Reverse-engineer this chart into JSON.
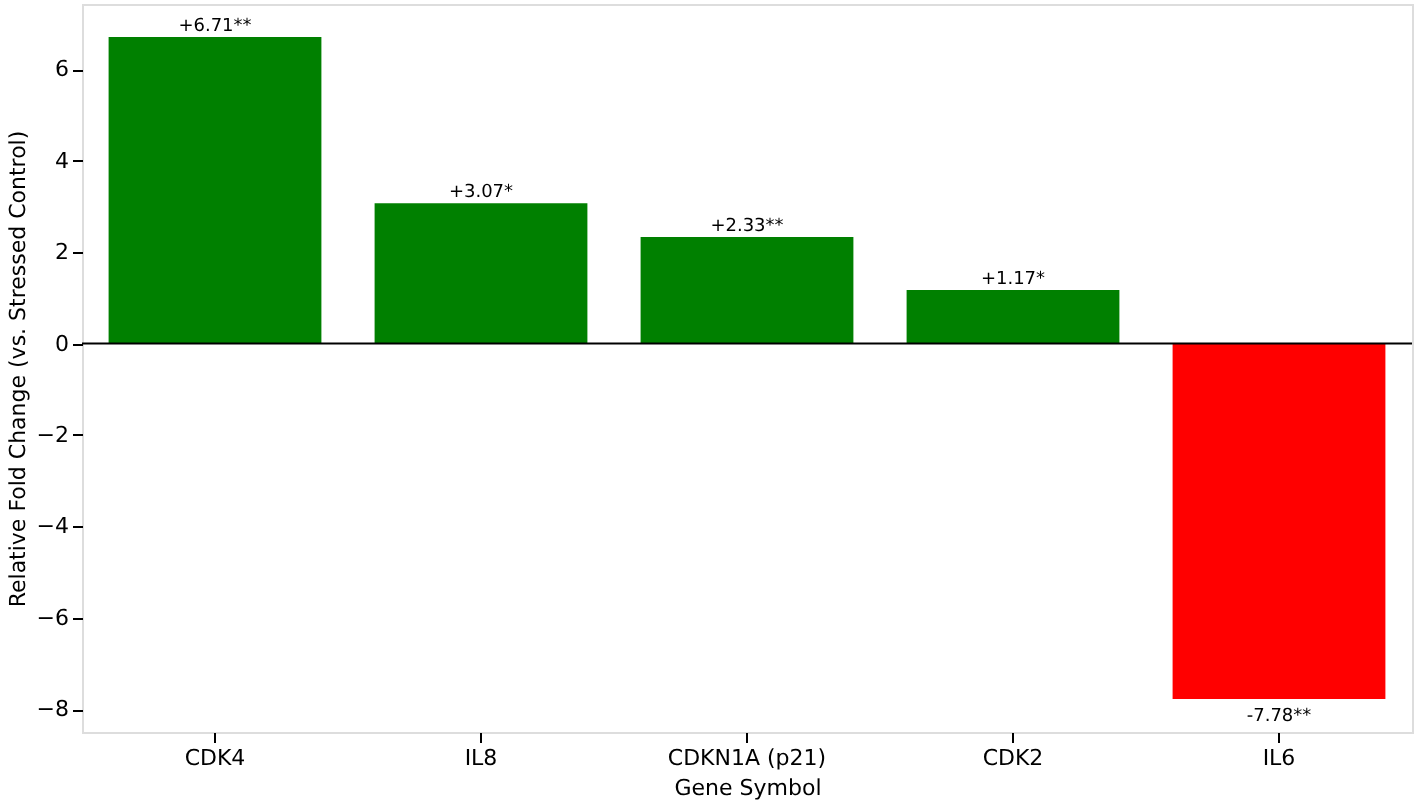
{
  "chart_data": {
    "type": "bar",
    "xlabel": "Gene Symbol",
    "ylabel": "Relative Fold Change (vs. Stressed Control)",
    "categories": [
      "CDK4",
      "IL8",
      "CDKN1A (p21)",
      "CDK2",
      "IL6"
    ],
    "values": [
      6.71,
      3.07,
      2.33,
      1.17,
      -7.78
    ],
    "colors": [
      "#008000",
      "#008000",
      "#008000",
      "#008000",
      "#ff0000"
    ],
    "value_labels": [
      "+6.71**",
      "+3.07*",
      "+2.33**",
      "+1.17*",
      "-7.78**"
    ],
    "ylim": [
      -8.5,
      7.43
    ],
    "yticks": [
      -8,
      -6,
      -4,
      -2,
      0,
      2,
      4,
      6
    ],
    "ref_lines": [
      {
        "axis": "y",
        "value": 0,
        "color": "#000000"
      }
    ],
    "grid": false
  }
}
